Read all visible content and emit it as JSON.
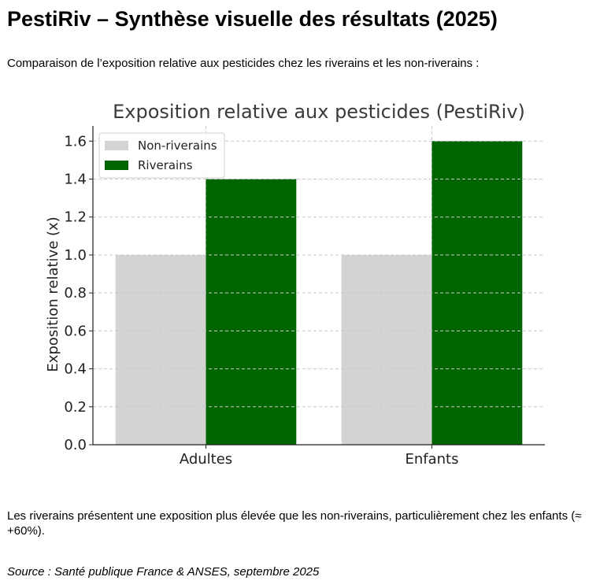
{
  "page": {
    "title": "PestiRiv – Synthèse visuelle des résultats (2025)",
    "intro": "Comparaison de l’exposition relative aux pesticides chez les riverains et les non-riverains :",
    "summary": "Les riverains présentent une exposition plus élevée que les non-riverains, particulièrement chez les enfants (≈ +60%).",
    "source": "Source : Santé publique France & ANSES, septembre 2025"
  },
  "chart_data": {
    "type": "bar",
    "title": "Exposition relative aux pesticides (PestiRiv)",
    "xlabel": "",
    "ylabel": "Exposition relative (x)",
    "categories": [
      "Adultes",
      "Enfants"
    ],
    "series": [
      {
        "name": "Non-riverains",
        "values": [
          1.0,
          1.0
        ],
        "color": "#d3d3d3"
      },
      {
        "name": "Riverains",
        "values": [
          1.4,
          1.6
        ],
        "color": "#006400"
      }
    ],
    "ylim": [
      0,
      1.68
    ],
    "yticks": [
      0.0,
      0.2,
      0.4,
      0.6,
      0.8,
      1.0,
      1.2,
      1.4,
      1.6
    ],
    "ytick_labels": [
      "0.0",
      "0.2",
      "0.4",
      "0.6",
      "0.8",
      "1.0",
      "1.2",
      "1.4",
      "1.6"
    ],
    "grid": true,
    "legend": "top-left"
  }
}
